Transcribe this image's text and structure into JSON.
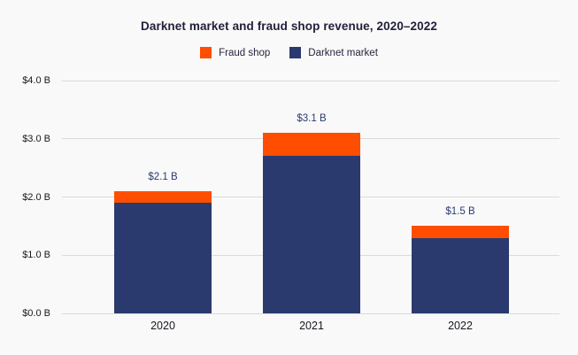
{
  "chart_data": {
    "type": "bar",
    "stacked": true,
    "title": "Darknet market and fraud shop revenue, 2020–2022",
    "categories": [
      "2020",
      "2021",
      "2022"
    ],
    "series": [
      {
        "name": "Darknet market",
        "color": "#2B3A6E",
        "values": [
          1.9,
          2.7,
          1.3
        ]
      },
      {
        "name": "Fraud shop",
        "color": "#FF4E00",
        "values": [
          0.2,
          0.4,
          0.2
        ]
      }
    ],
    "total_labels": [
      "$2.1 B",
      "$3.1 B",
      "$1.5 B"
    ],
    "y_ticks": [
      {
        "value": 0,
        "label": "$0.0 B"
      },
      {
        "value": 1,
        "label": "$1.0 B"
      },
      {
        "value": 2,
        "label": "$2.0 B"
      },
      {
        "value": 3,
        "label": "$3.0 B"
      },
      {
        "value": 4,
        "label": "$4.0 B"
      }
    ],
    "ylim": [
      0,
      4
    ],
    "xlabel": "",
    "ylabel": "",
    "grid": true,
    "legend_position": "top",
    "legend": [
      {
        "label": "Fraud shop",
        "color": "#FF4E00"
      },
      {
        "label": "Darknet market",
        "color": "#2B3A6E"
      }
    ],
    "background_color": "#F9F9F9",
    "gridline_color": "#DBDBDB"
  }
}
